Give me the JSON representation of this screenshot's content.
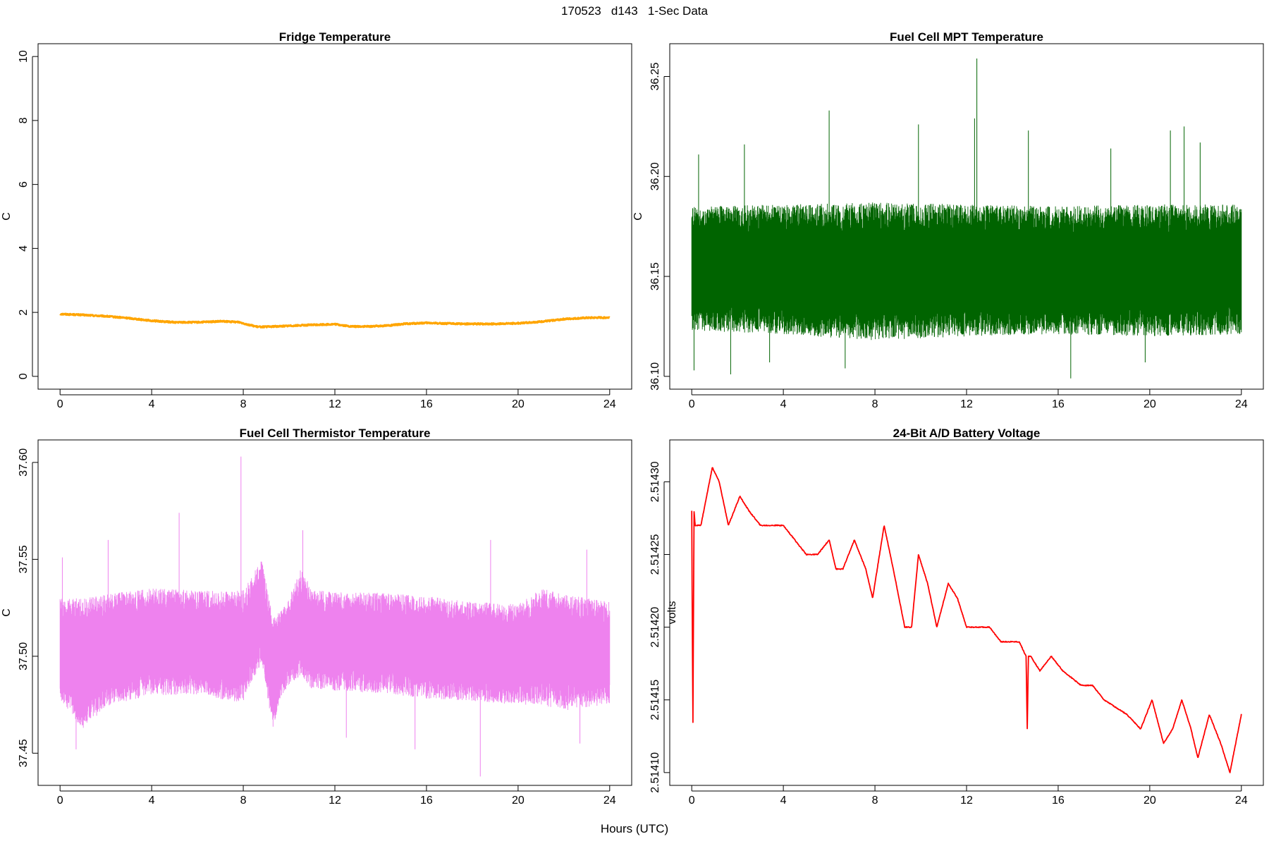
{
  "page_title": "170523   d143   1-Sec Data",
  "x_axis_label": "Hours (UTC)",
  "chart_data": [
    {
      "type": "line",
      "title": "Fridge Temperature",
      "ylabel": "C",
      "xlabel": "Hours (UTC)",
      "color": "#ffa500",
      "xlim": [
        0,
        24
      ],
      "ylim": [
        0,
        10
      ],
      "x_ticks": [
        "0",
        "4",
        "8",
        "12",
        "16",
        "20",
        "24"
      ],
      "y_ticks": [
        "0",
        "2",
        "4",
        "6",
        "8",
        "10"
      ],
      "x": [
        0,
        1,
        2,
        3,
        4,
        5,
        6,
        7,
        7.8,
        8.2,
        8.6,
        9,
        10,
        11,
        12,
        12.7,
        13.5,
        14.5,
        15,
        16,
        17,
        18,
        19,
        20,
        21,
        22,
        23,
        24
      ],
      "values": [
        1.95,
        1.92,
        1.88,
        1.82,
        1.74,
        1.69,
        1.69,
        1.72,
        1.7,
        1.62,
        1.55,
        1.55,
        1.58,
        1.61,
        1.63,
        1.56,
        1.56,
        1.6,
        1.64,
        1.67,
        1.65,
        1.64,
        1.64,
        1.66,
        1.71,
        1.79,
        1.83,
        1.84
      ],
      "noise_amplitude": 0.02
    },
    {
      "type": "line",
      "title": "Fuel Cell MPT Temperature",
      "ylabel": "C",
      "xlabel": "Hours (UTC)",
      "color": "#006400",
      "xlim": [
        0,
        24
      ],
      "ylim": [
        36.1,
        36.26
      ],
      "x_ticks": [
        "0",
        "4",
        "8",
        "12",
        "16",
        "20",
        "24"
      ],
      "y_ticks": [
        "36.10",
        "36.15",
        "36.20",
        "36.25"
      ],
      "x": [
        0,
        4,
        8,
        12,
        16,
        20,
        24
      ],
      "values": [
        36.153,
        36.153,
        36.152,
        36.152,
        36.153,
        36.153,
        36.153
      ],
      "band_low": [
        36.123,
        36.121,
        36.118,
        36.12,
        36.121,
        36.12,
        36.121
      ],
      "band_high": [
        36.185,
        36.186,
        36.187,
        36.186,
        36.185,
        36.186,
        36.186
      ],
      "spikes_high": [
        [
          6.0,
          36.233
        ],
        [
          12.35,
          36.229
        ],
        [
          12.45,
          36.259
        ],
        [
          0.3,
          36.211
        ],
        [
          2.3,
          36.216
        ],
        [
          9.9,
          36.226
        ],
        [
          14.7,
          36.223
        ],
        [
          20.9,
          36.223
        ],
        [
          21.5,
          36.225
        ],
        [
          22.2,
          36.217
        ],
        [
          18.3,
          36.214
        ]
      ],
      "spikes_low": [
        [
          1.7,
          36.101
        ],
        [
          16.55,
          36.099
        ],
        [
          12.4,
          36.141
        ],
        [
          0.1,
          36.103
        ],
        [
          6.7,
          36.104
        ],
        [
          3.4,
          36.107
        ],
        [
          19.8,
          36.107
        ]
      ],
      "noise_amplitude": 0.015
    },
    {
      "type": "line",
      "title": "Fuel Cell Thermistor Temperature",
      "ylabel": "C",
      "xlabel": "Hours (UTC)",
      "color": "#ee82ee",
      "xlim": [
        0,
        24
      ],
      "ylim": [
        37.44,
        37.605
      ],
      "x_ticks": [
        "0",
        "4",
        "8",
        "12",
        "16",
        "20",
        "24"
      ],
      "y_ticks": [
        "37.45",
        "37.50",
        "37.55",
        "37.60"
      ],
      "x": [
        0,
        1,
        2,
        4,
        6,
        8,
        8.8,
        9.3,
        9.6,
        10,
        10.5,
        11,
        12,
        14,
        16,
        18,
        20,
        21,
        22,
        24
      ],
      "values": [
        37.503,
        37.498,
        37.505,
        37.508,
        37.507,
        37.505,
        37.525,
        37.482,
        37.498,
        37.508,
        37.515,
        37.508,
        37.507,
        37.507,
        37.505,
        37.503,
        37.5,
        37.508,
        37.505,
        37.5
      ],
      "band_low": [
        37.478,
        37.462,
        37.474,
        37.48,
        37.48,
        37.476,
        37.497,
        37.462,
        37.478,
        37.485,
        37.49,
        37.483,
        37.482,
        37.481,
        37.478,
        37.477,
        37.475,
        37.475,
        37.472,
        37.475
      ],
      "band_high": [
        37.53,
        37.53,
        37.532,
        37.535,
        37.534,
        37.534,
        37.55,
        37.52,
        37.523,
        37.53,
        37.545,
        37.535,
        37.533,
        37.533,
        37.531,
        37.528,
        37.527,
        37.535,
        37.532,
        37.528
      ],
      "spikes_high": [
        [
          7.9,
          37.603
        ],
        [
          5.2,
          37.574
        ],
        [
          10.6,
          37.565
        ],
        [
          2.1,
          37.56
        ],
        [
          18.8,
          37.56
        ],
        [
          23.0,
          37.555
        ],
        [
          0.1,
          37.551
        ]
      ],
      "spikes_low": [
        [
          18.35,
          37.438
        ],
        [
          12.5,
          37.458
        ],
        [
          15.5,
          37.452
        ],
        [
          0.7,
          37.452
        ],
        [
          22.7,
          37.455
        ]
      ],
      "noise_amplitude": 0.012
    },
    {
      "type": "line",
      "title": "24-Bit A/D Battery Voltage",
      "ylabel": "volts",
      "xlabel": "Hours (UTC)",
      "color": "#ff0000",
      "xlim": [
        0,
        24
      ],
      "ylim": [
        2.5141,
        2.51432
      ],
      "x_ticks": [
        "0",
        "4",
        "8",
        "12",
        "16",
        "20",
        "24"
      ],
      "y_ticks": [
        "2.51410",
        "2.51415",
        "2.51420",
        "2.51425",
        "2.51430"
      ],
      "x": [
        0,
        0.05,
        0.1,
        0.15,
        0.4,
        0.9,
        1.2,
        1.6,
        2.1,
        2.5,
        3.0,
        3.5,
        4.0,
        4.5,
        5.0,
        5.5,
        6.0,
        6.3,
        6.6,
        7.1,
        7.6,
        7.9,
        8.4,
        8.8,
        9.3,
        9.6,
        9.9,
        10.3,
        10.7,
        11.2,
        11.6,
        12.0,
        13.0,
        13.5,
        14.0,
        14.3,
        14.6,
        14.65,
        14.7,
        14.8,
        15.2,
        15.7,
        16.2,
        17.0,
        17.5,
        18.0,
        19.0,
        19.6,
        20.1,
        20.6,
        21.0,
        21.4,
        21.8,
        22.1,
        22.6,
        23.1,
        23.5,
        24.0
      ],
      "values": [
        2.51428,
        2.51413,
        2.51428,
        2.51427,
        2.51427,
        2.51431,
        2.5143,
        2.51427,
        2.51429,
        2.51428,
        2.51427,
        2.51427,
        2.51427,
        2.51426,
        2.51425,
        2.51425,
        2.51426,
        2.51424,
        2.51424,
        2.51426,
        2.51424,
        2.51422,
        2.51427,
        2.51424,
        2.5142,
        2.5142,
        2.51425,
        2.51423,
        2.5142,
        2.51423,
        2.51422,
        2.5142,
        2.5142,
        2.51419,
        2.51419,
        2.51419,
        2.51418,
        2.51413,
        2.51418,
        2.51418,
        2.51417,
        2.51418,
        2.51417,
        2.51416,
        2.51416,
        2.51415,
        2.51414,
        2.51413,
        2.51415,
        2.51412,
        2.51413,
        2.51415,
        2.51413,
        2.51411,
        2.51414,
        2.51412,
        2.5141,
        2.51414
      ],
      "noise_amplitude": 3e-07
    }
  ]
}
